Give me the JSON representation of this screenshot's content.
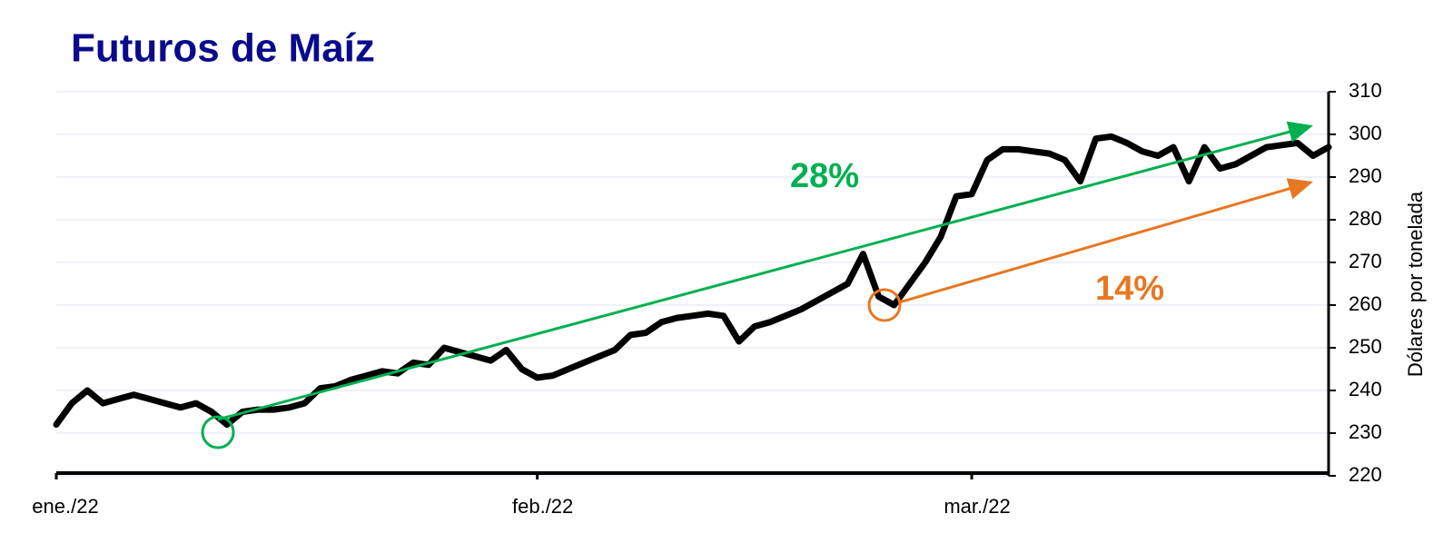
{
  "chart_data": {
    "type": "line",
    "title": "Futuros de Maíz",
    "y_label": "Dólares por tonelada",
    "categories": [
      "ene./22",
      null,
      null,
      null,
      null,
      null,
      null,
      null,
      null,
      null,
      null,
      null,
      null,
      null,
      null,
      null,
      null,
      null,
      null,
      null,
      null,
      null,
      null,
      null,
      null,
      null,
      null,
      null,
      null,
      null,
      null,
      "feb./22",
      null,
      null,
      null,
      null,
      null,
      null,
      null,
      null,
      null,
      null,
      null,
      null,
      null,
      null,
      null,
      null,
      null,
      null,
      null,
      null,
      null,
      null,
      null,
      null,
      null,
      null,
      null,
      "mar./22",
      null,
      null,
      null,
      null,
      null,
      null,
      null,
      null,
      null,
      null,
      null,
      null,
      null,
      null,
      null,
      null,
      null,
      null,
      null,
      null,
      null,
      null,
      null
    ],
    "series": [
      {
        "name": "Futuros de Maíz",
        "color": "#000000",
        "values": [
          232,
          237,
          240,
          237,
          238,
          239,
          238,
          237,
          236,
          237,
          235,
          232,
          235,
          235.5,
          235.5,
          236,
          237,
          240.5,
          241,
          242.5,
          243.5,
          244.5,
          244,
          246.5,
          246,
          250,
          249,
          248,
          247,
          249.5,
          245,
          243,
          243.5,
          245,
          246.5,
          248,
          249.5,
          253,
          253.5,
          256,
          257,
          257.5,
          258,
          257.5,
          251.5,
          255,
          256,
          257.5,
          259,
          261,
          263,
          265,
          272,
          262,
          260,
          265,
          270,
          276,
          285.5,
          286,
          294,
          296.5,
          296.5,
          296,
          295.5,
          294,
          289,
          299,
          299.5,
          298,
          296,
          295,
          297,
          289,
          297,
          292,
          293,
          295,
          297,
          297.5,
          298,
          295,
          297
        ]
      }
    ],
    "ylim": [
      220,
      310
    ],
    "yticks": [
      220,
      230,
      240,
      250,
      260,
      270,
      280,
      290,
      300,
      310
    ],
    "grid": true,
    "y_axis_side": "right",
    "annotations": [
      {
        "text": "28%",
        "color": "#00b050"
      },
      {
        "text": "14%",
        "color": "#e87722"
      }
    ]
  }
}
